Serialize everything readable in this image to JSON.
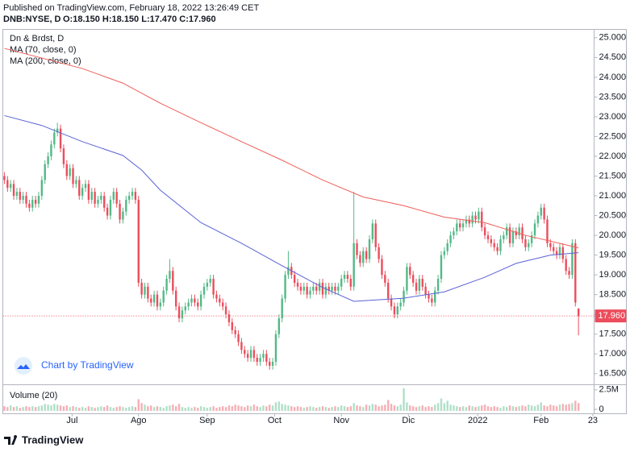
{
  "header": {
    "published": "Published on TradingView.com, February 18, 2022 13:26:49 CET",
    "symbol": "DNB:NYSE, D",
    "ohlc": "O:18.150 H:18.150 L:17.470 C:17.960"
  },
  "chart_data": {
    "type": "candlestick",
    "title": "Dn & Brdst, D",
    "up_color": "#53b987",
    "down_color": "#eb4d5c",
    "open": [
      21.5,
      21.4,
      21.2,
      21.3,
      21.0,
      21.1,
      20.9,
      21.0,
      20.8,
      20.7,
      20.9,
      20.8,
      21.0,
      21.4,
      21.8,
      22.0,
      22.3,
      22.6,
      22.7,
      22.2,
      21.8,
      21.5,
      21.7,
      21.3,
      21.4,
      21.0,
      21.2,
      21.3,
      20.9,
      21.1,
      20.8,
      20.9,
      21.0,
      20.7,
      20.5,
      20.9,
      21.1,
      20.8,
      20.4,
      20.6,
      20.9,
      21.0,
      21.1,
      20.9,
      18.8,
      18.5,
      18.7,
      18.4,
      18.3,
      18.5,
      18.2,
      18.3,
      18.6,
      18.9,
      19.1,
      18.6,
      18.2,
      17.9,
      18.1,
      18.2,
      18.3,
      18.4,
      18.3,
      18.2,
      18.5,
      18.7,
      18.8,
      18.9,
      18.5,
      18.4,
      18.3,
      18.2,
      18.0,
      17.8,
      17.6,
      17.5,
      17.3,
      17.1,
      17.0,
      16.9,
      17.1,
      16.9,
      16.8,
      16.9,
      17.0,
      16.8,
      16.7,
      16.8,
      17.5,
      17.9,
      18.4,
      19.0,
      19.2,
      19.0,
      18.8,
      18.7,
      18.6,
      18.7,
      18.5,
      18.6,
      18.7,
      18.6,
      18.8,
      18.5,
      18.7,
      18.6,
      18.7,
      18.6,
      18.7,
      18.9,
      19.0,
      18.9,
      18.7,
      19.8,
      19.5,
      19.3,
      19.6,
      19.4,
      19.9,
      20.3,
      19.7,
      19.4,
      19.0,
      18.8,
      18.4,
      18.2,
      18.0,
      18.2,
      18.3,
      18.6,
      19.2,
      19.0,
      18.8,
      18.6,
      18.9,
      18.7,
      18.5,
      18.4,
      18.3,
      18.6,
      18.9,
      19.5,
      19.6,
      19.8,
      20.0,
      20.1,
      20.3,
      20.2,
      20.3,
      20.4,
      20.3,
      20.5,
      20.4,
      20.6,
      20.2,
      20.0,
      19.9,
      19.8,
      19.7,
      19.6,
      19.9,
      20.0,
      20.2,
      19.8,
      20.1,
      20.0,
      20.2,
      19.9,
      19.7,
      19.8,
      20.0,
      20.3,
      20.5,
      20.7,
      20.4,
      19.8,
      19.7,
      19.6,
      19.5,
      19.7,
      19.4,
      19.1,
      19.0,
      19.8,
      18.15
    ],
    "high": [
      21.6,
      21.5,
      21.4,
      21.4,
      21.2,
      21.2,
      21.1,
      21.1,
      20.9,
      21.0,
      21.0,
      21.1,
      21.5,
      21.9,
      22.1,
      22.4,
      22.7,
      22.85,
      22.8,
      22.3,
      21.9,
      21.8,
      21.8,
      21.5,
      21.5,
      21.3,
      21.4,
      21.4,
      21.2,
      21.2,
      21.0,
      21.1,
      21.1,
      20.8,
      21.0,
      21.2,
      21.2,
      20.9,
      20.7,
      21.0,
      21.1,
      21.2,
      21.2,
      21.0,
      18.9,
      18.8,
      18.8,
      18.5,
      18.6,
      18.6,
      18.4,
      18.7,
      19.0,
      19.4,
      19.2,
      18.7,
      18.3,
      18.2,
      18.3,
      18.4,
      18.5,
      18.5,
      18.4,
      18.6,
      18.8,
      18.9,
      19.0,
      19.0,
      18.6,
      18.5,
      18.4,
      18.3,
      18.1,
      17.9,
      17.7,
      17.6,
      17.4,
      17.2,
      17.1,
      17.2,
      17.2,
      17.0,
      17.0,
      17.1,
      17.1,
      16.9,
      16.9,
      17.6,
      18.0,
      18.5,
      19.1,
      19.6,
      19.3,
      19.1,
      18.9,
      18.8,
      18.8,
      18.8,
      18.7,
      18.8,
      18.8,
      18.9,
      18.9,
      18.8,
      18.8,
      18.8,
      18.8,
      18.8,
      19.0,
      19.1,
      19.1,
      19.0,
      21.1,
      19.9,
      19.6,
      19.7,
      19.7,
      20.0,
      20.4,
      20.4,
      19.8,
      19.5,
      19.1,
      18.9,
      18.5,
      18.3,
      18.3,
      18.4,
      18.7,
      19.3,
      19.3,
      19.1,
      18.9,
      19.0,
      19.0,
      18.8,
      18.6,
      18.5,
      18.7,
      19.0,
      19.6,
      19.7,
      19.9,
      20.1,
      20.2,
      20.4,
      20.4,
      20.4,
      20.5,
      20.5,
      20.6,
      20.6,
      20.7,
      20.7,
      20.3,
      20.1,
      20.0,
      19.9,
      19.8,
      20.0,
      20.1,
      20.3,
      20.3,
      20.2,
      20.2,
      20.3,
      20.3,
      20.0,
      19.9,
      20.1,
      20.4,
      20.6,
      20.8,
      20.8,
      20.5,
      19.9,
      19.8,
      19.7,
      19.8,
      19.8,
      19.5,
      19.2,
      19.9,
      19.9,
      18.15
    ],
    "low": [
      21.3,
      21.1,
      21.1,
      20.9,
      20.9,
      20.8,
      20.8,
      20.7,
      20.6,
      20.6,
      20.7,
      20.7,
      20.9,
      21.3,
      21.7,
      21.9,
      22.2,
      22.5,
      22.1,
      21.7,
      21.4,
      21.4,
      21.2,
      21.2,
      20.9,
      20.9,
      21.1,
      20.8,
      20.8,
      20.7,
      20.7,
      20.8,
      20.6,
      20.4,
      20.4,
      20.8,
      20.7,
      20.3,
      20.3,
      20.5,
      20.8,
      20.9,
      20.8,
      18.7,
      18.4,
      18.4,
      18.3,
      18.2,
      18.2,
      18.1,
      18.1,
      18.2,
      18.5,
      18.8,
      18.5,
      18.1,
      17.8,
      17.8,
      18.0,
      18.1,
      18.2,
      18.2,
      18.1,
      18.1,
      18.4,
      18.6,
      18.7,
      18.4,
      18.3,
      18.2,
      18.1,
      17.9,
      17.7,
      17.5,
      17.4,
      17.2,
      17.0,
      16.9,
      16.8,
      16.8,
      16.8,
      16.7,
      16.7,
      16.8,
      16.7,
      16.6,
      16.6,
      16.7,
      17.4,
      17.8,
      18.3,
      18.9,
      18.9,
      18.7,
      18.6,
      18.5,
      18.5,
      18.4,
      18.4,
      18.5,
      18.5,
      18.5,
      18.4,
      18.4,
      18.5,
      18.5,
      18.5,
      18.5,
      18.6,
      18.8,
      18.8,
      18.6,
      18.6,
      19.4,
      19.2,
      19.2,
      19.3,
      19.3,
      19.8,
      19.6,
      19.3,
      18.9,
      18.7,
      18.3,
      18.1,
      17.9,
      17.9,
      18.1,
      18.2,
      18.5,
      18.9,
      18.7,
      18.5,
      18.5,
      18.6,
      18.4,
      18.3,
      18.2,
      18.2,
      18.5,
      18.8,
      19.4,
      19.5,
      19.7,
      19.9,
      20.0,
      20.1,
      20.1,
      20.2,
      20.2,
      20.2,
      20.3,
      20.3,
      20.1,
      19.9,
      19.8,
      19.7,
      19.6,
      19.5,
      19.5,
      19.8,
      19.9,
      19.7,
      19.7,
      19.9,
      19.9,
      19.8,
      19.6,
      19.6,
      19.7,
      19.9,
      20.2,
      20.4,
      20.3,
      19.7,
      19.6,
      19.5,
      19.4,
      19.4,
      19.3,
      19.0,
      18.9,
      18.9,
      18.2,
      17.47
    ],
    "close": [
      21.4,
      21.2,
      21.3,
      21.0,
      21.1,
      20.9,
      21.0,
      20.8,
      20.7,
      20.9,
      20.8,
      21.0,
      21.4,
      21.8,
      22.0,
      22.3,
      22.6,
      22.7,
      22.2,
      21.8,
      21.5,
      21.7,
      21.3,
      21.4,
      21.0,
      21.2,
      21.3,
      20.9,
      21.1,
      20.8,
      20.9,
      21.0,
      20.7,
      20.5,
      20.9,
      21.1,
      20.8,
      20.4,
      20.6,
      20.9,
      21.0,
      21.1,
      20.9,
      18.8,
      18.5,
      18.7,
      18.4,
      18.3,
      18.5,
      18.2,
      18.3,
      18.6,
      18.9,
      19.1,
      18.6,
      18.2,
      17.9,
      18.1,
      18.2,
      18.3,
      18.4,
      18.3,
      18.2,
      18.5,
      18.7,
      18.8,
      18.9,
      18.5,
      18.4,
      18.3,
      18.2,
      18.0,
      17.8,
      17.6,
      17.5,
      17.3,
      17.1,
      17.0,
      16.9,
      17.1,
      16.9,
      16.8,
      16.9,
      17.0,
      16.8,
      16.7,
      16.8,
      17.5,
      17.9,
      18.4,
      19.0,
      19.2,
      19.0,
      18.8,
      18.7,
      18.6,
      18.7,
      18.5,
      18.6,
      18.7,
      18.6,
      18.8,
      18.5,
      18.7,
      18.6,
      18.7,
      18.6,
      18.7,
      18.9,
      19.0,
      18.9,
      18.7,
      19.8,
      19.5,
      19.3,
      19.6,
      19.4,
      19.9,
      20.3,
      19.7,
      19.4,
      19.0,
      18.8,
      18.4,
      18.2,
      18.0,
      18.2,
      18.3,
      18.6,
      19.2,
      19.0,
      18.8,
      18.6,
      18.9,
      18.7,
      18.5,
      18.4,
      18.3,
      18.6,
      18.9,
      19.5,
      19.6,
      19.8,
      20.0,
      20.1,
      20.3,
      20.2,
      20.3,
      20.4,
      20.3,
      20.5,
      20.4,
      20.6,
      20.2,
      20.0,
      19.9,
      19.8,
      19.7,
      19.6,
      19.9,
      20.0,
      20.2,
      19.8,
      20.1,
      20.0,
      20.2,
      19.9,
      19.7,
      19.8,
      20.0,
      20.3,
      20.5,
      20.7,
      20.4,
      19.8,
      19.7,
      19.6,
      19.5,
      19.7,
      19.4,
      19.1,
      19.0,
      19.8,
      18.3,
      17.96
    ],
    "xlim": [
      -0.5,
      189
    ],
    "xticks": [
      {
        "value": 21.7,
        "label": "Jul"
      },
      {
        "value": 43,
        "label": "Ago"
      },
      {
        "value": 65,
        "label": "Sep"
      },
      {
        "value": 86.6,
        "label": "Oct"
      },
      {
        "value": 108,
        "label": "Nov"
      },
      {
        "value": 129.5,
        "label": "Dic"
      },
      {
        "value": 151.7,
        "label": "2022"
      },
      {
        "value": 172,
        "label": "Feb"
      },
      {
        "value": 188.6,
        "label": "23"
      }
    ],
    "ylim": [
      16.23,
      25.2
    ],
    "yticks": [
      {
        "value": 16.5,
        "label": "16.500"
      },
      {
        "value": 17,
        "label": "17.000"
      },
      {
        "value": 17.5,
        "label": "17.500"
      },
      {
        "value": 18,
        "label": "18.000"
      },
      {
        "value": 18.5,
        "label": "18.500"
      },
      {
        "value": 19,
        "label": "19.000"
      },
      {
        "value": 19.5,
        "label": "19.500"
      },
      {
        "value": 20,
        "label": "20.000"
      },
      {
        "value": 20.5,
        "label": "20.500"
      },
      {
        "value": 21,
        "label": "21.000"
      },
      {
        "value": 21.5,
        "label": "21.500"
      },
      {
        "value": 22,
        "label": "22.000"
      },
      {
        "value": 22.5,
        "label": "22.500"
      },
      {
        "value": 23,
        "label": "23.000"
      },
      {
        "value": 23.5,
        "label": "23.500"
      },
      {
        "value": 24,
        "label": "24.000"
      },
      {
        "value": 24.5,
        "label": "24.500"
      },
      {
        "value": 25,
        "label": "25.000"
      }
    ],
    "last_price": {
      "value": 17.96,
      "label": "17.960"
    },
    "lines": [
      {
        "name": "MA (70, close, 0)",
        "color": "#5b62d6",
        "x": [
          0,
          12,
          25,
          38,
          44,
          50,
          63,
          76,
          89,
          102,
          112,
          128,
          141,
          154,
          164,
          175,
          184
        ],
        "values": [
          23.03,
          22.78,
          22.37,
          22.02,
          21.65,
          21.14,
          20.32,
          19.8,
          19.23,
          18.68,
          18.33,
          18.41,
          18.57,
          18.94,
          19.29,
          19.5,
          19.56
        ]
      },
      {
        "name": "MA (200, close, 0)",
        "color": "#ef5f5a",
        "x": [
          0,
          25,
          38,
          50,
          63,
          76,
          89,
          102,
          115,
          128,
          141,
          154,
          167,
          180,
          184
        ],
        "values": [
          24.73,
          24.22,
          23.85,
          23.34,
          22.85,
          22.37,
          21.9,
          21.4,
          20.97,
          20.75,
          20.46,
          20.32,
          20.0,
          19.76,
          19.68
        ]
      }
    ],
    "volume": {
      "name": "Volume (20)",
      "ylim": [
        0,
        3.1
      ],
      "yticks": [
        0,
        {
          "value": 2.5,
          "label": "2.5M"
        }
      ],
      "values": [
        0.6,
        0.5,
        0.7,
        0.5,
        0.6,
        0.4,
        0.5,
        0.6,
        0.5,
        0.6,
        0.5,
        0.6,
        0.7,
        0.9,
        0.8,
        0.7,
        0.9,
        0.8,
        0.7,
        0.6,
        0.7,
        0.5,
        0.6,
        0.5,
        0.4,
        0.5,
        0.4,
        0.6,
        0.5,
        0.4,
        0.5,
        0.6,
        0.5,
        0.7,
        0.5,
        0.4,
        0.5,
        0.6,
        0.5,
        0.4,
        0.5,
        0.6,
        0.5,
        1.5,
        1.0,
        0.8,
        0.6,
        0.7,
        0.5,
        0.6,
        0.5,
        0.4,
        0.6,
        0.7,
        0.8,
        0.6,
        0.9,
        0.5,
        0.4,
        0.5,
        0.4,
        0.5,
        0.4,
        0.6,
        0.5,
        0.4,
        0.5,
        0.6,
        0.4,
        0.5,
        0.6,
        0.5,
        0.7,
        0.6,
        0.8,
        0.7,
        0.6,
        0.5,
        0.7,
        0.6,
        0.8,
        0.6,
        0.5,
        0.7,
        0.6,
        0.8,
        0.7,
        1.1,
        1.2,
        0.9,
        0.8,
        0.7,
        0.6,
        0.5,
        0.6,
        0.5,
        0.4,
        0.5,
        0.6,
        0.5,
        0.4,
        0.5,
        0.6,
        0.5,
        0.4,
        0.5,
        0.6,
        0.5,
        0.7,
        0.6,
        0.5,
        0.6,
        1.0,
        0.7,
        0.6,
        0.5,
        0.8,
        0.7,
        0.9,
        0.8,
        0.6,
        0.7,
        0.8,
        1.4,
        0.9,
        0.7,
        0.6,
        0.8,
        2.9,
        1.1,
        0.7,
        0.6,
        0.5,
        0.6,
        0.7,
        0.5,
        0.6,
        0.5,
        0.8,
        1.0,
        1.6,
        1.0,
        1.3,
        0.8,
        0.7,
        0.6,
        0.5,
        0.6,
        0.5,
        0.7,
        0.6,
        0.5,
        0.6,
        0.7,
        0.8,
        0.6,
        0.5,
        0.6,
        0.5,
        0.4,
        0.6,
        0.5,
        0.7,
        0.6,
        0.5,
        0.6,
        0.7,
        0.6,
        0.8,
        0.7,
        0.6,
        0.8,
        1.1,
        0.7,
        0.6,
        0.8,
        0.7,
        0.6,
        0.8,
        0.9,
        0.8,
        0.9,
        1.0,
        1.3,
        1.0
      ]
    }
  },
  "watermark": "Chart by TradingView",
  "footer": "TradingView"
}
